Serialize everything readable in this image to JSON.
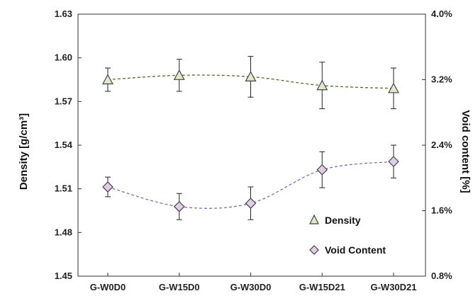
{
  "chart_data": {
    "type": "line",
    "categories": [
      "G-W0D0",
      "G-W15D0",
      "G-W30D0",
      "G-W15D21",
      "G-W30D21"
    ],
    "left_axis": {
      "label": "Density [g/cm³]",
      "ylim": [
        1.45,
        1.63
      ],
      "ticks": [
        "1.45",
        "1.48",
        "1.51",
        "1.54",
        "1.57",
        "1.60",
        "1.63"
      ]
    },
    "right_axis": {
      "label": "Void content [%]",
      "ylim": [
        0.8,
        4.0
      ],
      "ticks": [
        "0.8%",
        "1.6%",
        "2.4%",
        "3.2%",
        "4.0%"
      ]
    },
    "series": [
      {
        "name": "Density",
        "axis": "left",
        "marker": "triangle",
        "marker_fill": "#dfe9c8",
        "line_color": "#5a6b2e",
        "line_style": "dashed",
        "values": [
          1.585,
          1.588,
          1.587,
          1.581,
          1.579
        ],
        "error": [
          0.008,
          0.011,
          0.014,
          0.016,
          0.014
        ]
      },
      {
        "name": "Void Content",
        "axis": "right",
        "marker": "diamond",
        "marker_fill": "#e2cde6",
        "line_color": "#7e6bb5",
        "line_style": "dashed",
        "values": [
          1.89,
          1.65,
          1.69,
          2.1,
          2.2
        ],
        "error": [
          0.12,
          0.16,
          0.2,
          0.22,
          0.2
        ]
      }
    ],
    "legend_placement": "bottom-right",
    "grid": false
  }
}
